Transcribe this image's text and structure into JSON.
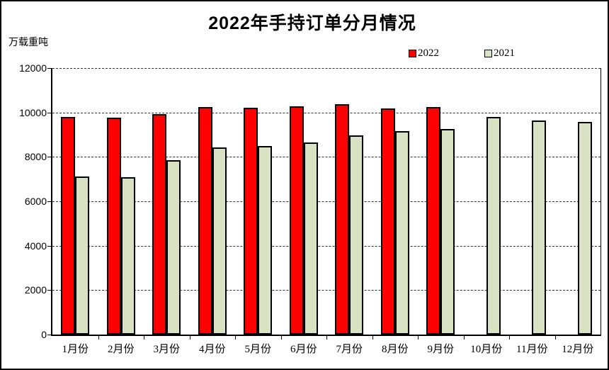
{
  "chart_data": {
    "type": "bar",
    "title": "2022年手持订单分月情况",
    "ylabel": "万载重吨",
    "xlabel": "",
    "categories": [
      "1月份",
      "2月份",
      "3月份",
      "4月份",
      "5月份",
      "6月份",
      "7月份",
      "8月份",
      "9月份",
      "10月份",
      "11月份",
      "12月份"
    ],
    "series": [
      {
        "name": "2022",
        "color": "#FF0000",
        "values": [
          9798,
          9775,
          9927,
          10247,
          10217,
          10274,
          10366,
          10195,
          10250,
          null,
          null,
          null
        ]
      },
      {
        "name": "2021",
        "color": "#D9E2C3",
        "values": [
          7111,
          7084,
          7857,
          8439,
          8497,
          8660,
          8967,
          9147,
          9244,
          9810,
          9639,
          9584
        ]
      }
    ],
    "ylim": [
      0,
      12000
    ],
    "yticks": [
      0,
      2000,
      4000,
      6000,
      8000,
      10000,
      12000
    ],
    "grid": "horizontal-dashed",
    "legend_position": "top-right",
    "bar_border_color": "#000000",
    "background_color": "#FFFFFF"
  }
}
